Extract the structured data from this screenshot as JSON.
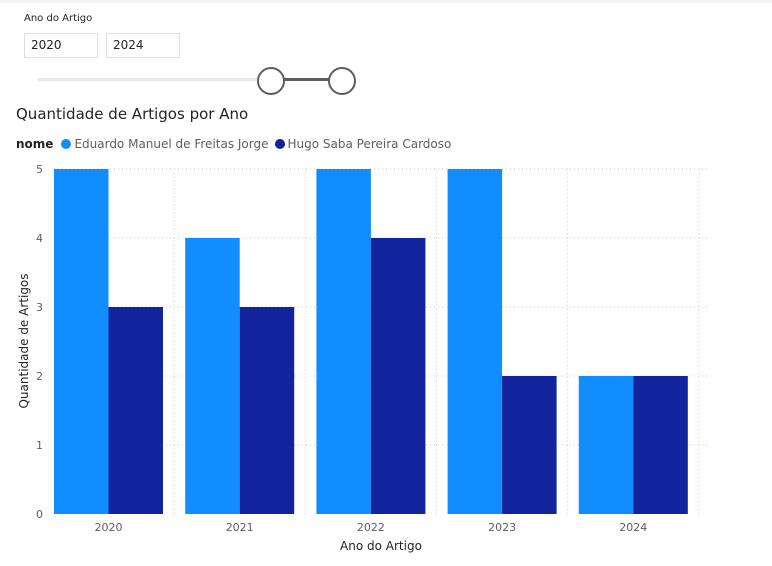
{
  "slicer": {
    "title": "Ano do Artigo",
    "min_value": "2020",
    "max_value": "2024"
  },
  "legend_label": "nome",
  "chart_data": {
    "type": "bar",
    "title": "Quantidade de Artigos por Ano",
    "xlabel": "Ano do Artigo",
    "ylabel": "Quantidade de Artigos",
    "categories": [
      "2020",
      "2021",
      "2022",
      "2023",
      "2024"
    ],
    "series": [
      {
        "name": "Eduardo Manuel de Freitas Jorge",
        "values": [
          5,
          4,
          5,
          5,
          2
        ],
        "color": "#118dff"
      },
      {
        "name": "Hugo Saba Pereira Cardoso",
        "values": [
          3,
          3,
          4,
          2,
          2
        ],
        "color": "#12239e"
      }
    ],
    "ylim": [
      0,
      5
    ],
    "yticks": [
      0,
      1,
      2,
      3,
      4,
      5
    ],
    "grid": true,
    "legend_position": "top-left"
  }
}
